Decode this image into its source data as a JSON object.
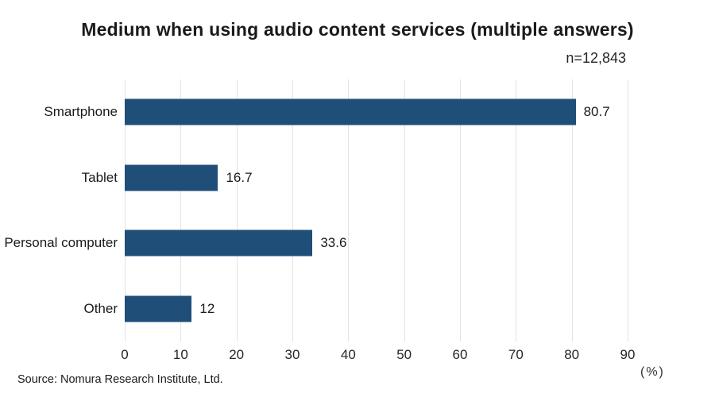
{
  "chart": {
    "title": "Medium when using audio content services (multiple answers)",
    "n_label": "n=12,843",
    "unit_label": "(%)",
    "source": "Source: Nomura Research Institute, Ltd."
  },
  "chart_data": {
    "type": "bar",
    "orientation": "horizontal",
    "title": "Medium when using audio content services (multiple answers)",
    "categories": [
      "Smartphone",
      "Tablet",
      "Personal computer",
      "Other"
    ],
    "values": [
      80.7,
      16.7,
      33.6,
      12
    ],
    "value_labels": [
      "80.7",
      "16.7",
      "33.6",
      "12"
    ],
    "annotations": [
      "n=12,843"
    ],
    "xlabel": "(%)",
    "ylabel": "",
    "xlim": [
      0,
      90
    ],
    "xticks": [
      0,
      10,
      20,
      30,
      40,
      50,
      60,
      70,
      80,
      90
    ],
    "grid": true,
    "legend": false,
    "bar_color": "#1F4E79",
    "gridline_color": "#e3e3e3",
    "source": "Source: Nomura Research Institute, Ltd."
  }
}
